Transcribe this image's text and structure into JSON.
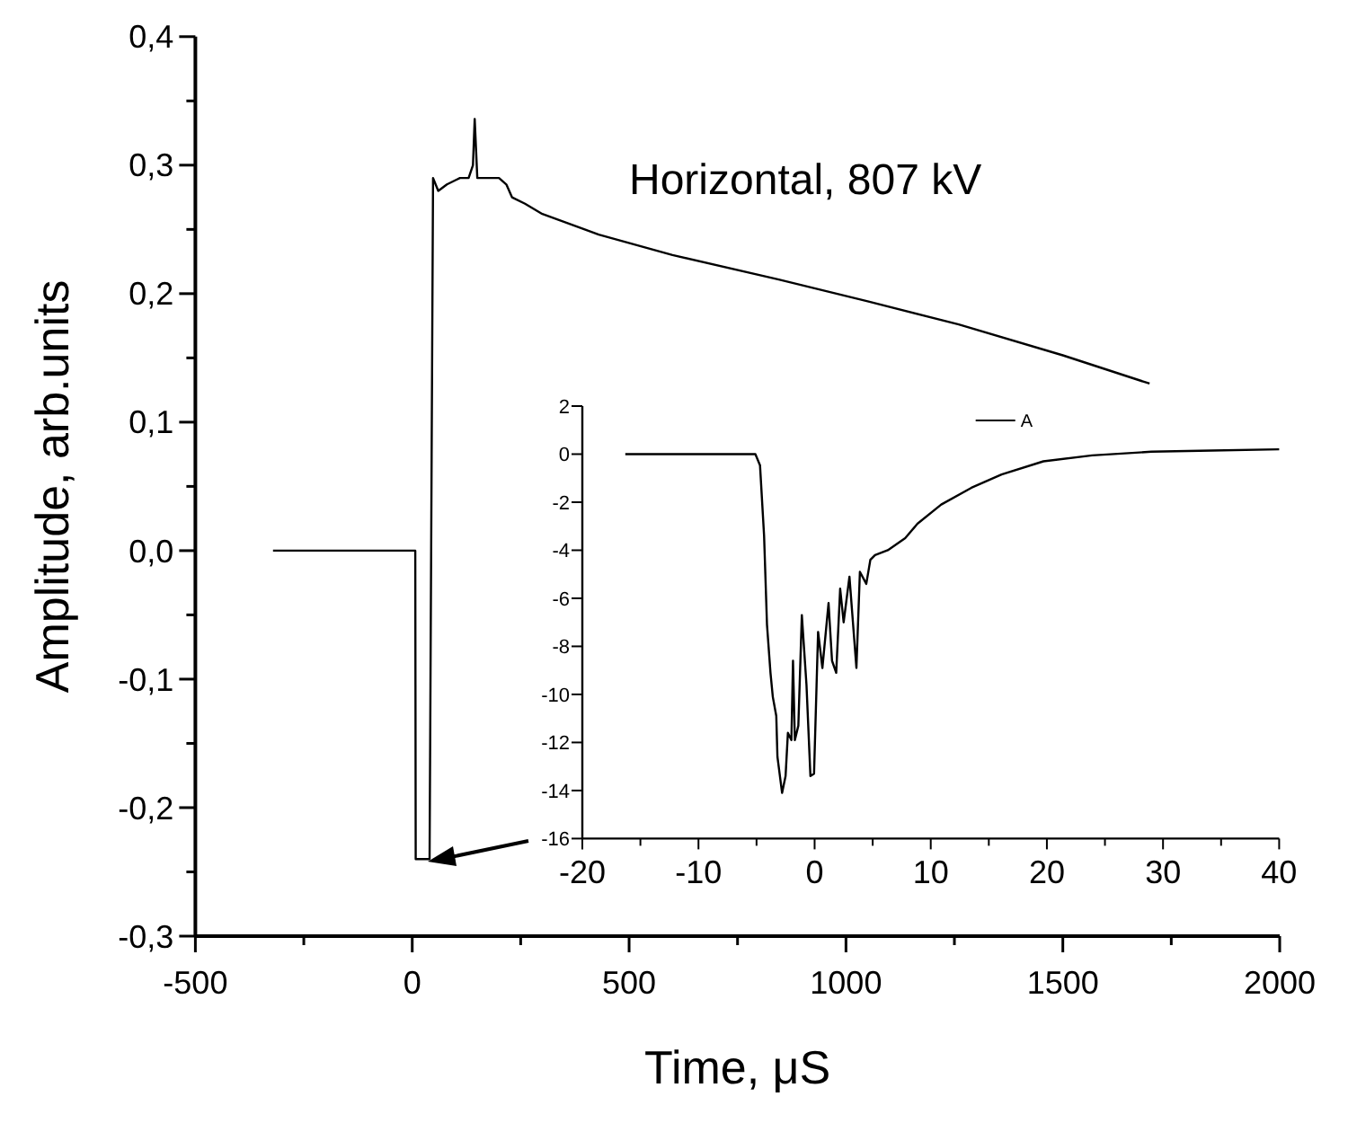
{
  "chart_data": [
    {
      "type": "line",
      "xlabel": "Time, μS",
      "ylabel": "Amplitude, arb.units",
      "annotations": [
        "Horizontal, 807 kV"
      ],
      "xlim": [
        -500,
        2000
      ],
      "xticks": [
        -500,
        {
          "value": -250,
          "label": null
        },
        0,
        {
          "value": 250,
          "label": null
        },
        500,
        {
          "value": 750,
          "label": null
        },
        1000,
        {
          "value": 1250,
          "label": null
        },
        1500,
        {
          "value": 1750,
          "label": null
        },
        2000
      ],
      "ylim": [
        -0.3,
        0.4
      ],
      "yticks": [
        {
          "value": -0.3,
          "label": "-0,3"
        },
        {
          "value": -0.25,
          "label": null
        },
        {
          "value": -0.2,
          "label": "-0,2"
        },
        {
          "value": -0.15,
          "label": null
        },
        {
          "value": -0.1,
          "label": "-0,1"
        },
        {
          "value": -0.05,
          "label": null
        },
        {
          "value": 0,
          "label": "0,0"
        },
        {
          "value": 0.05,
          "label": null
        },
        {
          "value": 0.1,
          "label": "0,1"
        },
        {
          "value": 0.15,
          "label": null
        },
        {
          "value": 0.2,
          "label": "0,2"
        },
        {
          "value": 0.25,
          "label": null
        },
        {
          "value": 0.3,
          "label": "0,3"
        },
        {
          "value": 0.35,
          "label": null
        },
        {
          "value": 0.4,
          "label": "0,4"
        }
      ],
      "series": [
        {
          "color": "#000000",
          "x": [
            -321,
            -200,
            0,
            7,
            8,
            40,
            48,
            60,
            80,
            110,
            130,
            140,
            144,
            150,
            180,
            200,
            217,
            230,
            260,
            300,
            430,
            600,
            845,
            1050,
            1260,
            1500,
            1700
          ],
          "values": [
            0,
            0,
            0,
            0,
            -0.24,
            -0.24,
            0.29,
            0.28,
            0.285,
            0.29,
            0.29,
            0.3,
            0.336,
            0.29,
            0.29,
            0.29,
            0.285,
            0.275,
            0.27,
            0.262,
            0.246,
            0.23,
            0.211,
            0.194,
            0.176,
            0.152,
            0.13
          ]
        }
      ]
    },
    {
      "type": "line",
      "legend": "top",
      "xlim": [
        -20,
        40
      ],
      "xticks": [
        -20,
        {
          "value": -15,
          "label": null
        },
        -10,
        {
          "value": -5,
          "label": null
        },
        0,
        {
          "value": 5,
          "label": null
        },
        10,
        {
          "value": 15,
          "label": null
        },
        20,
        {
          "value": 25,
          "label": null
        },
        30,
        {
          "value": 35,
          "label": null
        },
        40
      ],
      "ylim": [
        -16,
        2
      ],
      "yticks": [
        -16,
        -14,
        -12,
        -10,
        -8,
        -6,
        -4,
        -2,
        0,
        2
      ],
      "series": [
        {
          "name": "A",
          "color": "#000000",
          "x": [
            -16.3,
            -9.8,
            -5.1,
            -4.7,
            -4.35,
            -4.1,
            -3.8,
            -3.6,
            -3.3,
            -3.2,
            -2.8,
            -2.5,
            -2.3,
            -2.0,
            -1.86,
            -1.7,
            -1.4,
            -1.1,
            -0.7,
            -0.36,
            -0.05,
            0.3,
            0.67,
            1.2,
            1.5,
            1.86,
            2.2,
            2.5,
            3.0,
            3.6,
            3.9,
            4.45,
            4.8,
            5.2,
            6.3,
            7.8,
            8.85,
            10.9,
            13.5,
            16.1,
            19.7,
            23.9,
            29.0,
            34.2,
            40
          ],
          "values": [
            0,
            0,
            0,
            -0.47,
            -3.4,
            -7.1,
            -9.1,
            -10.1,
            -10.9,
            -12.6,
            -14.1,
            -13.4,
            -11.6,
            -11.9,
            -8.6,
            -11.9,
            -11.3,
            -6.7,
            -9.6,
            -13.4,
            -13.3,
            -7.4,
            -8.9,
            -6.2,
            -8.6,
            -9.1,
            -5.6,
            -7.0,
            -5.1,
            -8.9,
            -4.9,
            -5.4,
            -4.4,
            -4.2,
            -4.0,
            -3.5,
            -2.9,
            -2.1,
            -1.4,
            -0.85,
            -0.3,
            -0.05,
            0.1,
            0.15,
            0.2
          ]
        }
      ]
    }
  ]
}
